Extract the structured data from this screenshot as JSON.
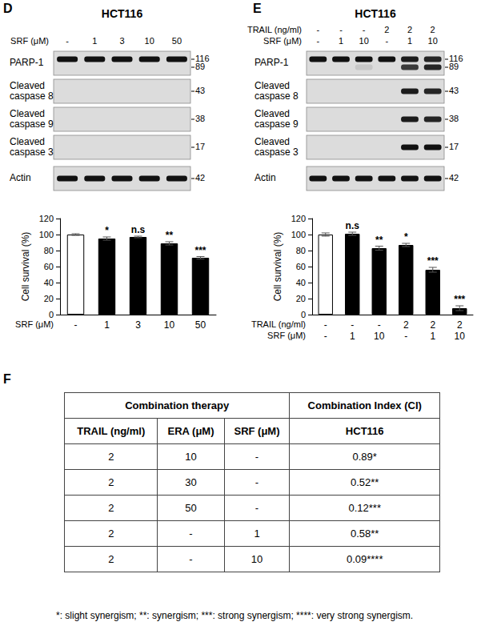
{
  "panels": [
    {
      "letter": "D",
      "title": "HCT116",
      "lanes": [
        {
          "label": "SRF (μM)",
          "values": [
            "-",
            "1",
            "3",
            "10",
            "50"
          ]
        }
      ],
      "blots": [
        {
          "label": "PARP-1",
          "markers": [
            {
              "size": 116,
              "bands": [
                1,
                1,
                1,
                1,
                1
              ]
            },
            {
              "size": 89,
              "bands": [
                0,
                0,
                0,
                0,
                0
              ]
            }
          ]
        },
        {
          "label": "Cleaved caspase 8",
          "markers": [
            {
              "size": 43,
              "bands": [
                0,
                0,
                0,
                0,
                0
              ]
            }
          ]
        },
        {
          "label": "Cleaved caspase 9",
          "markers": [
            {
              "size": 38,
              "bands": [
                0,
                0,
                0,
                0,
                0
              ]
            }
          ]
        },
        {
          "label": "Cleaved caspase 3",
          "markers": [
            {
              "size": 17,
              "bands": [
                0,
                0,
                0,
                0,
                0
              ]
            }
          ]
        },
        {
          "label": "Actin",
          "markers": [
            {
              "size": 42,
              "bands": [
                1,
                1,
                1,
                1,
                1
              ]
            }
          ]
        }
      ]
    },
    {
      "letter": "E",
      "title": "HCT116",
      "lanes": [
        {
          "label": "TRAIL (ng/ml)",
          "values": [
            "-",
            "-",
            "-",
            "2",
            "2",
            "2"
          ]
        },
        {
          "label": "SRF (μM)",
          "values": [
            "-",
            "1",
            "10",
            "-",
            "1",
            "10"
          ]
        }
      ],
      "blots": [
        {
          "label": "PARP-1",
          "markers": [
            {
              "size": 116,
              "bands": [
                1,
                1,
                1,
                1,
                0.95,
                0.9
              ]
            },
            {
              "size": 89,
              "bands": [
                0,
                0,
                0.1,
                0,
                0.8,
                0.9
              ]
            }
          ]
        },
        {
          "label": "Cleaved caspase 8",
          "markers": [
            {
              "size": 43,
              "bands": [
                0,
                0,
                0,
                0,
                0.95,
                0.9
              ]
            }
          ]
        },
        {
          "label": "Cleaved caspase 9",
          "markers": [
            {
              "size": 38,
              "bands": [
                0,
                0,
                0,
                0,
                0.95,
                0.9
              ]
            }
          ]
        },
        {
          "label": "Cleaved caspase 3",
          "markers": [
            {
              "size": 17,
              "bands": [
                0,
                0,
                0,
                0,
                1,
                1
              ]
            }
          ]
        },
        {
          "label": "Actin",
          "markers": [
            {
              "size": 42,
              "bands": [
                1,
                1,
                1,
                1,
                1,
                1
              ]
            }
          ]
        }
      ]
    },
    {
      "letter": "F"
    }
  ],
  "chart_data": [
    {
      "type": "bar",
      "y_label": "Cell survival (%)",
      "x_rows": [
        {
          "label": "SRF (μM)",
          "values": [
            "-",
            "1",
            "3",
            "10",
            "50"
          ]
        }
      ],
      "values": [
        100,
        95,
        97,
        89,
        71
      ],
      "errors": [
        1,
        2,
        1,
        2,
        1.5
      ],
      "annotations": [
        null,
        "*",
        "n.s",
        "**",
        "***"
      ],
      "colors": [
        "#ffffff",
        "#000000",
        "#000000",
        "#000000",
        "#000000"
      ],
      "ylim": [
        0,
        120
      ],
      "yticks": [
        0,
        20,
        40,
        60,
        80,
        100,
        120
      ],
      "grid": false
    },
    {
      "type": "bar",
      "y_label": "Cell survival (%)",
      "x_rows": [
        {
          "label": "TRAIL (ng/ml)",
          "values": [
            "-",
            "-",
            "-",
            "2",
            "2",
            "2"
          ]
        },
        {
          "label": "SRF (μM)",
          "values": [
            "-",
            "1",
            "10",
            "-",
            "1",
            "10"
          ]
        }
      ],
      "values": [
        100,
        101,
        83,
        87,
        56,
        8
      ],
      "errors": [
        2,
        2,
        2.5,
        2,
        3,
        3
      ],
      "annotations": [
        null,
        "n.s",
        "**",
        "*",
        "***",
        "***"
      ],
      "colors": [
        "#ffffff",
        "#000000",
        "#000000",
        "#000000",
        "#000000",
        "#000000"
      ],
      "ylim": [
        0,
        120
      ],
      "yticks": [
        0,
        20,
        40,
        60,
        80,
        100,
        120
      ],
      "grid": false
    }
  ],
  "table": {
    "header": [
      "Combination therapy",
      "Combination Index (CI)"
    ],
    "subheader": [
      "TRAIL (ng/ml)",
      "ERA (μM)",
      "SRF (μM)",
      "HCT116"
    ],
    "rows": [
      [
        2,
        10,
        "-",
        "0.89*"
      ],
      [
        2,
        30,
        "-",
        "0.52**"
      ],
      [
        2,
        50,
        "-",
        "0.12***"
      ],
      [
        2,
        "-",
        1,
        "0.58**"
      ],
      [
        2,
        "-",
        10,
        "0.09****"
      ]
    ],
    "footnote": "*: slight synergism; **: synergism; ***: strong synergism; ****: very strong synergism."
  }
}
